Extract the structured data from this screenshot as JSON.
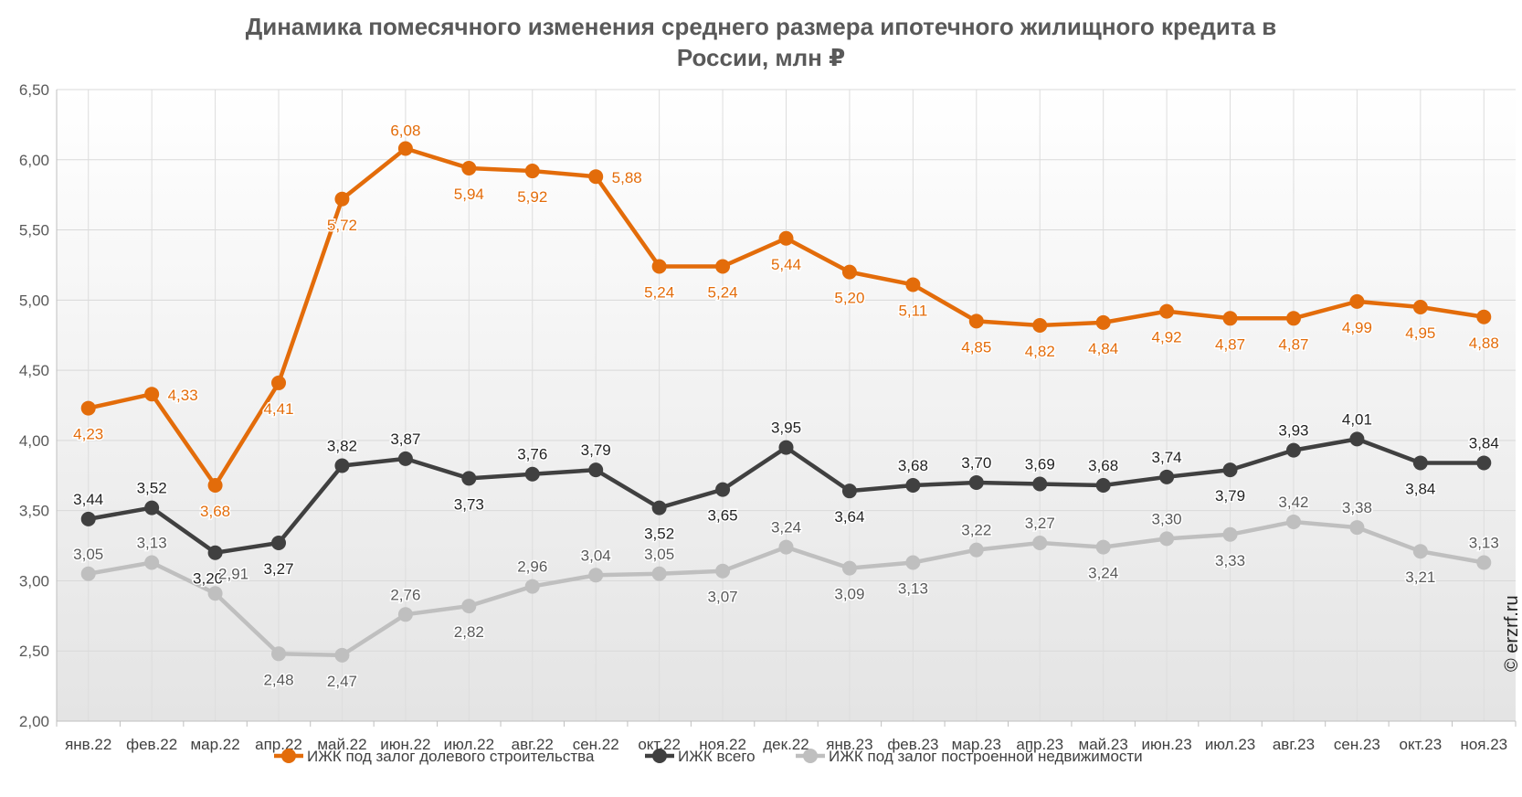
{
  "title_line1": "Динамика помесячного изменения среднего размера ипотечного жилищного кредита в",
  "title_line2": "России, млн ₽",
  "watermark": "© erzrf.ru",
  "chart_data": {
    "type": "line",
    "title": "Динамика помесячного изменения среднего размера ипотечного жилищного кредита в России, млн ₽",
    "categories": [
      "янв.22",
      "фев.22",
      "мар.22",
      "апр.22",
      "май.22",
      "июн.22",
      "июл.22",
      "авг.22",
      "сен.22",
      "окт.22",
      "ноя.22",
      "дек.22",
      "янв.23",
      "фев.23",
      "мар.23",
      "апр.23",
      "май.23",
      "июн.23",
      "июл.23",
      "авг.23",
      "сен.23",
      "окт.23",
      "ноя.23"
    ],
    "ylim": [
      2.0,
      6.5
    ],
    "yticks": [
      "2,00",
      "2,50",
      "3,00",
      "3,50",
      "4,00",
      "4,50",
      "5,00",
      "5,50",
      "6,00",
      "6,50"
    ],
    "grid": true,
    "legend_position": "bottom",
    "series": [
      {
        "name": "ИЖК под залог долевого строительства",
        "color": "#E36C0A",
        "values": [
          4.23,
          4.33,
          3.68,
          4.41,
          5.72,
          6.08,
          5.94,
          5.92,
          5.88,
          5.24,
          5.24,
          5.44,
          5.2,
          5.11,
          4.85,
          4.82,
          4.84,
          4.92,
          4.87,
          4.87,
          4.99,
          4.95,
          4.88
        ],
        "labels": [
          "4,23",
          "4,33",
          "3,68",
          "4,41",
          "5,72",
          "6,08",
          "5,94",
          "5,92",
          "5,88",
          "5,24",
          "5,24",
          "5,44",
          "5,20",
          "5,11",
          "4,85",
          "4,82",
          "4,84",
          "4,92",
          "4,87",
          "4,87",
          "4,99",
          "4,95",
          "4,88"
        ]
      },
      {
        "name": "ИЖК всего",
        "color": "#404040",
        "values": [
          3.44,
          3.52,
          3.2,
          3.27,
          3.82,
          3.87,
          3.73,
          3.76,
          3.79,
          3.52,
          3.65,
          3.95,
          3.64,
          3.68,
          3.7,
          3.69,
          3.68,
          3.74,
          3.79,
          3.93,
          4.01,
          3.84,
          3.84
        ],
        "labels": [
          "3,44",
          "3,52",
          "3,20",
          "3,27",
          "3,82",
          "3,87",
          "3,73",
          "3,76",
          "3,79",
          "3,52",
          "3,65",
          "3,95",
          "3,64",
          "3,68",
          "3,70",
          "3,69",
          "3,68",
          "3,74",
          "3,79",
          "3,93",
          "4,01",
          "3,84",
          "3,84"
        ]
      },
      {
        "name": "ИЖК под залог построенной недвижимости",
        "color": "#BFBFBF",
        "values": [
          3.05,
          3.13,
          2.91,
          2.48,
          2.47,
          2.76,
          2.82,
          2.96,
          3.04,
          3.05,
          3.07,
          3.24,
          3.09,
          3.13,
          3.22,
          3.27,
          3.24,
          3.3,
          3.33,
          3.42,
          3.38,
          3.21,
          3.13
        ],
        "labels": [
          "3,05",
          "3,13",
          "2,91",
          "2,48",
          "2,47",
          "2,76",
          "2,82",
          "2,96",
          "3,04",
          "3,05",
          "3,07",
          "3,24",
          "3,09",
          "3,13",
          "3,22",
          "3,27",
          "3,24",
          "3,30",
          "3,33",
          "3,42",
          "3,38",
          "3,21",
          "3,13"
        ]
      }
    ]
  }
}
